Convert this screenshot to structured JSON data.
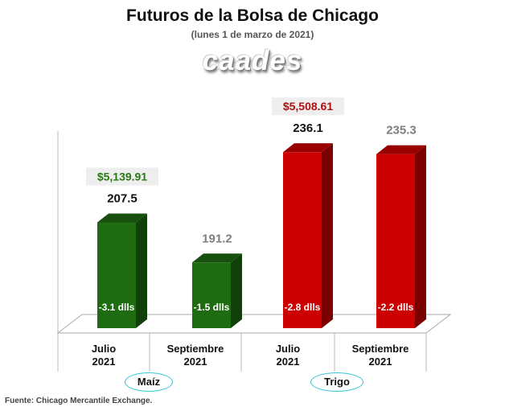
{
  "title": "Futuros de la Bolsa de Chicago",
  "subtitle": "(lunes 1 de marzo de 2021)",
  "logo_text": "caades",
  "source": "Fuente: Chicago Mercantile Exchange.",
  "colors": {
    "maiz": "#1e6b12",
    "trigo": "#cc0000",
    "maiz_price": "#2a7a15",
    "trigo_price": "#b01010",
    "muted_value": "#7f7f7f",
    "ellipse_border": "#37c6d6"
  },
  "chart_data": {
    "type": "bar",
    "title": "Futuros de la Bolsa de Chicago",
    "subtitle": "(lunes 1 de marzo de 2021)",
    "xlabel": "",
    "ylabel": "",
    "ylim": [
      170,
      245
    ],
    "grid": false,
    "groups": [
      {
        "name": "Maíz",
        "price_label": "$5,139.91",
        "bars": [
          {
            "category": "Julio\n2021",
            "value": 207.5,
            "value_label": "207.5",
            "change_label": "-3.1 dlls"
          },
          {
            "category": "Septiembre\n2021",
            "value": 191.2,
            "value_label": "191.2",
            "change_label": "-1.5 dlls"
          }
        ]
      },
      {
        "name": "Trigo",
        "price_label": "$5,508.61",
        "bars": [
          {
            "category": "Julio\n2021",
            "value": 236.1,
            "value_label": "236.1",
            "change_label": "-2.8 dlls"
          },
          {
            "category": "Septiembre\n2021",
            "value": 235.3,
            "value_label": "235.3",
            "change_label": "-2.2 dlls"
          }
        ]
      }
    ]
  }
}
